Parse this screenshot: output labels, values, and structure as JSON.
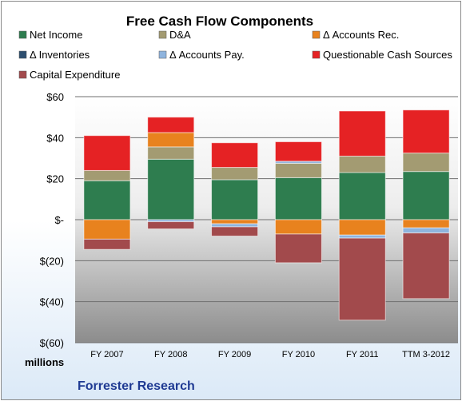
{
  "chart_data": {
    "type": "bar",
    "stacked": true,
    "title": "Free Cash Flow Components",
    "categories": [
      "FY 2007",
      "FY 2008",
      "FY 2009",
      "FY 2010",
      "FY 2011",
      "TTM 3-2012"
    ],
    "series": [
      {
        "name": "Net Income",
        "color": "#2e7d4f",
        "values": [
          19,
          29.5,
          19.5,
          20.5,
          23,
          23.5
        ]
      },
      {
        "name": "D&A",
        "color": "#a39b72",
        "values": [
          5,
          6,
          6,
          7,
          8,
          9
        ]
      },
      {
        "name": "Δ Accounts Rec.",
        "color": "#e8821e",
        "values": [
          -9.5,
          7,
          -2,
          -7,
          -7.5,
          -4
        ]
      },
      {
        "name": "Δ Inventories",
        "color": "#2d4e6e",
        "values": [
          0,
          0,
          0,
          0,
          0,
          0
        ]
      },
      {
        "name": "Δ Accounts Pay.",
        "color": "#8fb4de",
        "values": [
          0,
          -1,
          -1.5,
          1,
          -1.5,
          -2.5
        ]
      },
      {
        "name": "Questionable Cash Sources",
        "color": "#e52224",
        "values": [
          17,
          7.5,
          12,
          9.5,
          22,
          21
        ]
      },
      {
        "name": "Capital Expenditure",
        "color": "#a24a4c",
        "values": [
          -5,
          -3.5,
          -4.5,
          -14,
          -40,
          -32
        ]
      }
    ],
    "yticks": [
      "$60",
      "$40",
      "$20",
      "$-",
      "$(20)",
      "$(40)",
      "$(60)"
    ],
    "ylim": [
      -60,
      60
    ],
    "ylabel": "",
    "xlabel": "",
    "unit_label": "millions",
    "source": "Forrester Research",
    "legend_position": "top",
    "grid": true
  }
}
